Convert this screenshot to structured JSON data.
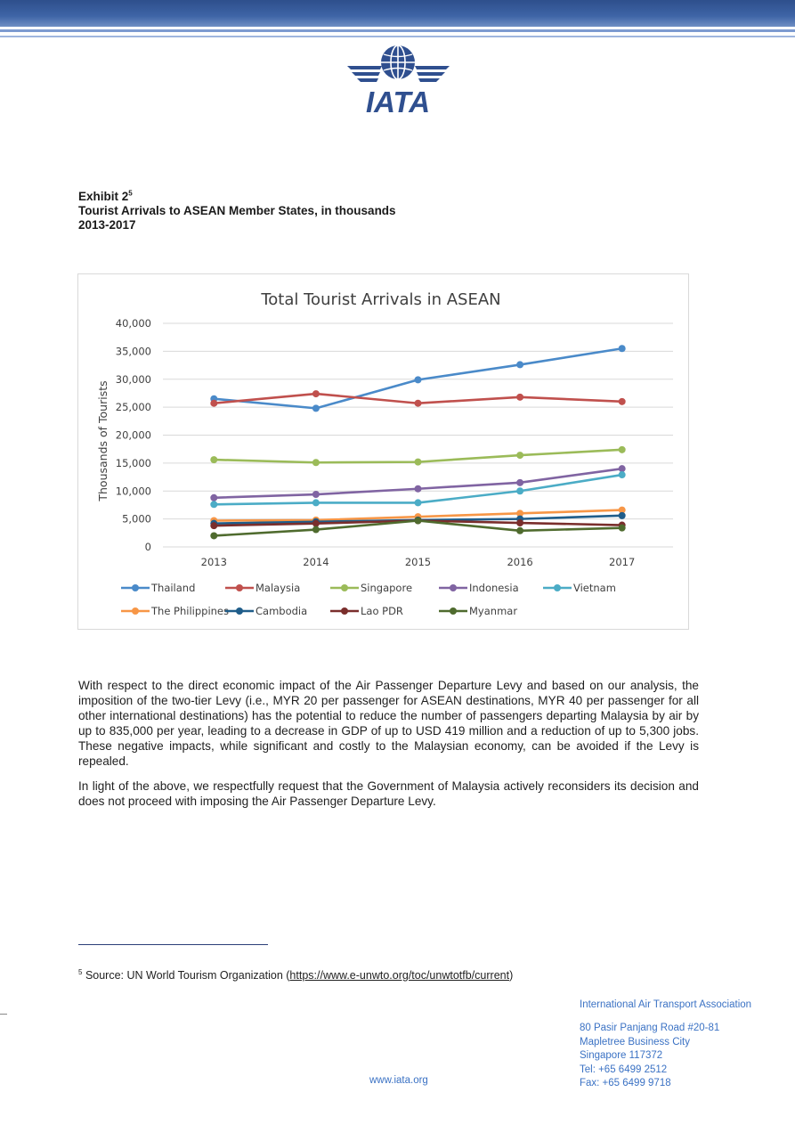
{
  "exhibit": {
    "label": "Exhibit 2",
    "footnote_ref": "5",
    "title": "Tourist Arrivals to ASEAN Member States, in thousands",
    "years": "2013-2017"
  },
  "logo": {
    "text": "IATA",
    "icon": "globe-wings-icon"
  },
  "colors": {
    "top_band": "#3e64a6",
    "link": "#3b72c4"
  },
  "chart_data": {
    "type": "line",
    "title": "Total Tourist Arrivals in ASEAN",
    "ylabel": "Thousands of Tourists",
    "xlabel": "",
    "x": [
      "2013",
      "2014",
      "2015",
      "2016",
      "2017"
    ],
    "ylim": [
      0,
      40000
    ],
    "yticks": [
      "0",
      "5,000",
      "10,000",
      "15,000",
      "20,000",
      "25,000",
      "30,000",
      "35,000",
      "40,000"
    ],
    "grid": true,
    "legend_position": "bottom",
    "series": [
      {
        "name": "Thailand",
        "color": "#4a8ac9",
        "values": [
          26500,
          24800,
          29900,
          32600,
          35500
        ]
      },
      {
        "name": "Malaysia",
        "color": "#c0504d",
        "values": [
          25700,
          27400,
          25700,
          26800,
          26000
        ]
      },
      {
        "name": "Singapore",
        "color": "#9bbb59",
        "values": [
          15600,
          15100,
          15200,
          16400,
          17400
        ]
      },
      {
        "name": "Indonesia",
        "color": "#8064a2",
        "values": [
          8800,
          9400,
          10400,
          11500,
          14000
        ]
      },
      {
        "name": "Vietnam",
        "color": "#4bacc6",
        "values": [
          7600,
          7900,
          7900,
          10000,
          12900
        ]
      },
      {
        "name": "The Philippines",
        "color": "#f79646",
        "values": [
          4700,
          4800,
          5400,
          6000,
          6600
        ]
      },
      {
        "name": "Cambodia",
        "color": "#1f5d8a",
        "values": [
          4200,
          4500,
          4800,
          5000,
          5600
        ]
      },
      {
        "name": "Lao PDR",
        "color": "#7a2e2c",
        "values": [
          3800,
          4200,
          4700,
          4300,
          3900
        ]
      },
      {
        "name": "Myanmar",
        "color": "#4f6b2e",
        "values": [
          2000,
          3100,
          4700,
          2900,
          3400
        ]
      }
    ]
  },
  "paragraphs": [
    "With respect to the direct economic impact of the Air Passenger Departure Levy and based on our analysis, the imposition of the two-tier Levy (i.e., MYR 20 per passenger for ASEAN destinations, MYR 40 per passenger for all other international destinations) has the potential to reduce the number of passengers departing Malaysia by air by up to 835,000 per year, leading to a decrease in GDP of up to USD 419 million and a reduction of up to 5,300 jobs. These negative impacts, while significant and costly to the Malaysian economy, can be avoided if the Levy is repealed.",
    "In light of the above, we respectfully request that the Government of Malaysia actively reconsiders its decision and does not proceed with imposing the Air Passenger Departure Levy."
  ],
  "footnote": {
    "number": "5",
    "text": "Source: UN World Tourism Organization (",
    "link": "https://www.e-unwto.org/toc/unwtotfb/current",
    "close": ")"
  },
  "footer": {
    "website": "www.iata.org",
    "org": "International Air Transport Association",
    "address": [
      "80 Pasir Panjang Road #20-81",
      "Mapletree Business City",
      "Singapore 117372"
    ],
    "tel": "Tel: +65 6499 2512",
    "fax": "Fax: +65 6499 9718"
  }
}
